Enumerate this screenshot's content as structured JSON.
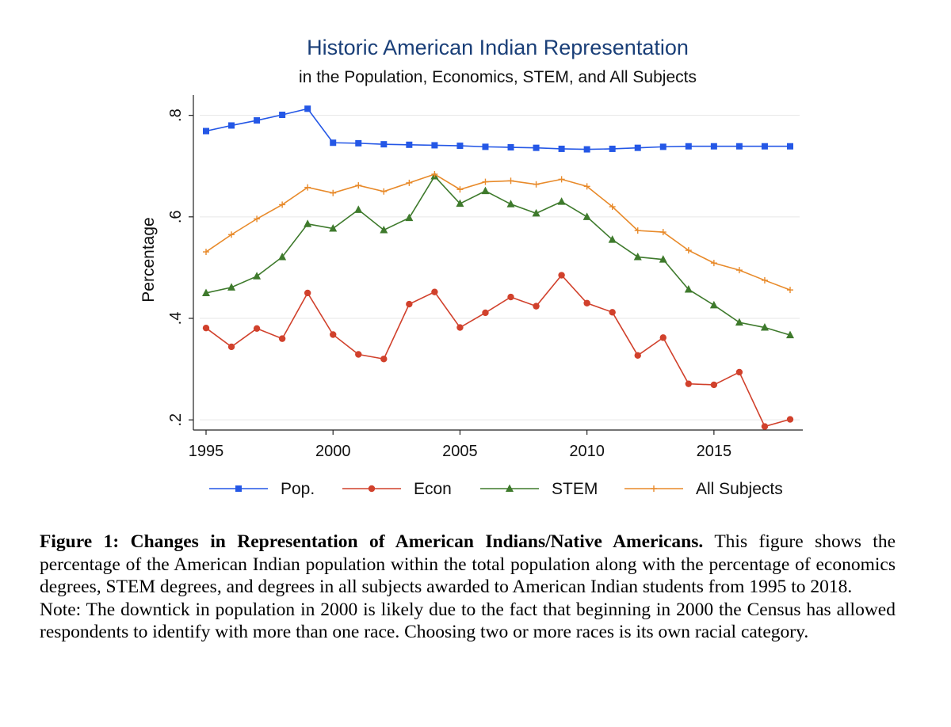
{
  "chart_data": {
    "type": "line",
    "title": "Historic American Indian Representation",
    "subtitle": "in the Population, Economics, STEM, and All Subjects",
    "xlabel": "",
    "ylabel": "Percentage",
    "xlim": [
      1995,
      2018
    ],
    "ylim": [
      0.18,
      0.84
    ],
    "xticks": [
      1995,
      2000,
      2005,
      2010,
      2015
    ],
    "xtick_labels": [
      "1995",
      "2000",
      "2005",
      "2010",
      "2015"
    ],
    "yticks": [
      0.2,
      0.4,
      0.6,
      0.8
    ],
    "ytick_labels": [
      ".2",
      ".4",
      ".6",
      ".8"
    ],
    "grid": true,
    "legend_position": "bottom",
    "x": [
      1995,
      1996,
      1997,
      1998,
      1999,
      2000,
      2001,
      2002,
      2003,
      2004,
      2005,
      2006,
      2007,
      2008,
      2009,
      2010,
      2011,
      2012,
      2013,
      2014,
      2015,
      2016,
      2017,
      2018
    ],
    "series": [
      {
        "name": "Pop.",
        "color": "#2457e6",
        "marker": "square",
        "values": [
          0.769,
          0.78,
          0.79,
          0.801,
          0.813,
          0.746,
          0.745,
          0.743,
          0.742,
          0.741,
          0.74,
          0.738,
          0.737,
          0.736,
          0.734,
          0.733,
          0.734,
          0.736,
          0.738,
          0.739,
          0.739,
          0.739,
          0.739,
          0.739
        ]
      },
      {
        "name": "Econ",
        "color": "#d1412c",
        "marker": "circle",
        "values": [
          0.381,
          0.344,
          0.38,
          0.36,
          0.45,
          0.368,
          0.329,
          0.32,
          0.428,
          0.452,
          0.382,
          0.411,
          0.442,
          0.424,
          0.485,
          0.43,
          0.412,
          0.327,
          0.362,
          0.271,
          0.269,
          0.294,
          0.187,
          0.201
        ]
      },
      {
        "name": "STEM",
        "color": "#3e7a2c",
        "marker": "triangle",
        "values": [
          0.45,
          0.461,
          0.483,
          0.521,
          0.586,
          0.577,
          0.614,
          0.574,
          0.598,
          0.68,
          0.626,
          0.651,
          0.625,
          0.607,
          0.63,
          0.6,
          0.555,
          0.521,
          0.516,
          0.457,
          0.426,
          0.392,
          0.382,
          0.367
        ]
      },
      {
        "name": "All Subjects",
        "color": "#e88a2a",
        "marker": "plus",
        "values": [
          0.531,
          0.565,
          0.596,
          0.624,
          0.658,
          0.647,
          0.662,
          0.65,
          0.667,
          0.684,
          0.654,
          0.669,
          0.671,
          0.664,
          0.674,
          0.66,
          0.62,
          0.573,
          0.57,
          0.534,
          0.509,
          0.495,
          0.475,
          0.456
        ]
      }
    ]
  },
  "caption": {
    "bold": "Figure 1: Changes in Representation of American Indians/Native Americans.",
    "text": "This figure shows the percentage of the American Indian population within the total population along with the percentage of economics degrees, STEM degrees, and degrees in all subjects awarded to American Indian students from 1995 to 2018.",
    "note": "Note: The downtick in population in 2000 is likely due to the fact that beginning in 2000 the Census has allowed respondents to identify with more than one race. Choosing two or more races is its own racial category."
  }
}
